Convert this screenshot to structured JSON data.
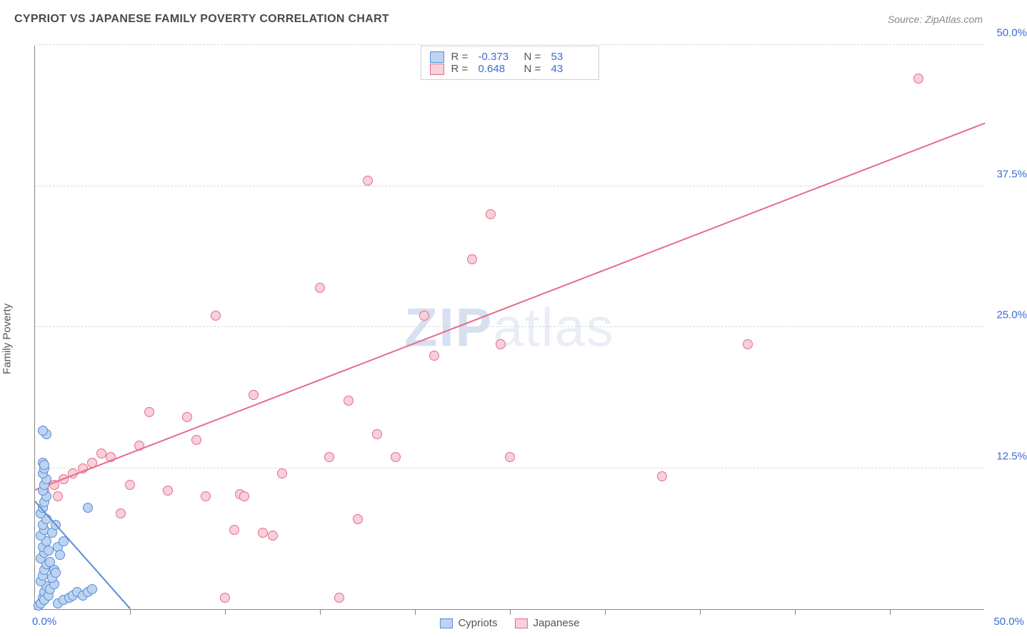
{
  "title": "CYPRIOT VS JAPANESE FAMILY POVERTY CORRELATION CHART",
  "source": "Source: ZipAtlas.com",
  "ylabel": "Family Poverty",
  "watermark": {
    "bold": "ZIP",
    "rest": "atlas"
  },
  "chart": {
    "type": "scatter",
    "xlim": [
      0,
      50
    ],
    "ylim": [
      0,
      50
    ],
    "grid_color": "#d8d8d8",
    "axis_color": "#888888",
    "background_color": "#ffffff",
    "tick_color": "#3b6bd6",
    "yticks": [
      12.5,
      25.0,
      37.5,
      50.0
    ],
    "ytick_labels": [
      "12.5%",
      "25.0%",
      "37.5%",
      "50.0%"
    ],
    "x_minor_ticks": [
      5,
      10,
      15,
      20,
      25,
      30,
      35,
      40,
      45
    ],
    "x_origin_label": "0.0%",
    "x_max_label": "50.0%",
    "marker_radius": 7,
    "marker_border_width": 1.5,
    "trend_line_width": 2,
    "label_fontsize": 15
  },
  "series": {
    "cypriots": {
      "label": "Cypriots",
      "fill": "#bcd4f0",
      "stroke": "#5a8bd8",
      "r_value": "-0.373",
      "n_value": "53",
      "trend": {
        "x1": 0,
        "y1": 9.5,
        "x2": 5,
        "y2": 0
      },
      "points": [
        [
          0.2,
          0.3
        ],
        [
          0.3,
          0.5
        ],
        [
          0.4,
          1.0
        ],
        [
          0.5,
          1.5
        ],
        [
          0.6,
          2.0
        ],
        [
          0.3,
          2.5
        ],
        [
          0.4,
          3.0
        ],
        [
          0.5,
          3.5
        ],
        [
          0.6,
          4.0
        ],
        [
          0.3,
          4.5
        ],
        [
          0.5,
          5.0
        ],
        [
          0.4,
          5.5
        ],
        [
          0.6,
          6.0
        ],
        [
          0.3,
          6.5
        ],
        [
          0.5,
          7.0
        ],
        [
          0.4,
          7.5
        ],
        [
          0.6,
          8.0
        ],
        [
          0.3,
          8.5
        ],
        [
          0.5,
          0.8
        ],
        [
          0.7,
          1.2
        ],
        [
          0.8,
          1.8
        ],
        [
          1.0,
          2.2
        ],
        [
          1.2,
          0.5
        ],
        [
          1.5,
          0.8
        ],
        [
          1.8,
          1.0
        ],
        [
          2.0,
          1.2
        ],
        [
          2.2,
          1.5
        ],
        [
          2.5,
          1.2
        ],
        [
          2.8,
          1.5
        ],
        [
          3.0,
          1.8
        ],
        [
          0.4,
          9.0
        ],
        [
          0.5,
          9.5
        ],
        [
          0.6,
          10.0
        ],
        [
          0.4,
          10.5
        ],
        [
          0.5,
          11.0
        ],
        [
          0.6,
          11.5
        ],
        [
          0.4,
          12.0
        ],
        [
          0.5,
          12.5
        ],
        [
          0.4,
          13.0
        ],
        [
          0.5,
          12.8
        ],
        [
          0.6,
          15.5
        ],
        [
          0.4,
          15.8
        ],
        [
          2.8,
          9.0
        ],
        [
          1.0,
          3.5
        ],
        [
          0.8,
          4.2
        ],
        [
          1.2,
          5.5
        ],
        [
          1.5,
          6.0
        ],
        [
          0.9,
          2.8
        ],
        [
          1.1,
          3.2
        ],
        [
          1.3,
          4.8
        ],
        [
          0.7,
          5.2
        ],
        [
          0.9,
          6.8
        ],
        [
          1.1,
          7.5
        ]
      ]
    },
    "japanese": {
      "label": "Japanese",
      "fill": "#f7d0d9",
      "stroke": "#e86a8a",
      "r_value": "0.648",
      "n_value": "43",
      "trend": {
        "x1": 0,
        "y1": 10.5,
        "x2": 50,
        "y2": 43
      },
      "points": [
        [
          0.5,
          10.5
        ],
        [
          1.0,
          11.0
        ],
        [
          1.2,
          10.0
        ],
        [
          1.5,
          11.5
        ],
        [
          2.0,
          12.0
        ],
        [
          2.5,
          12.5
        ],
        [
          3.0,
          13.0
        ],
        [
          3.5,
          13.8
        ],
        [
          4.0,
          13.5
        ],
        [
          4.5,
          8.5
        ],
        [
          5.0,
          11.0
        ],
        [
          5.5,
          14.5
        ],
        [
          6.0,
          17.5
        ],
        [
          7.0,
          10.5
        ],
        [
          8.0,
          17.0
        ],
        [
          8.5,
          15.0
        ],
        [
          9.0,
          10.0
        ],
        [
          9.5,
          26.0
        ],
        [
          10.0,
          1.0
        ],
        [
          10.5,
          7.0
        ],
        [
          10.8,
          10.2
        ],
        [
          11.0,
          10.0
        ],
        [
          11.5,
          19.0
        ],
        [
          12.5,
          6.5
        ],
        [
          15.0,
          28.5
        ],
        [
          15.5,
          13.5
        ],
        [
          16.0,
          1.0
        ],
        [
          16.5,
          18.5
        ],
        [
          17.0,
          8.0
        ],
        [
          17.5,
          38.0
        ],
        [
          18.0,
          15.5
        ],
        [
          19.0,
          13.5
        ],
        [
          20.5,
          26.0
        ],
        [
          21.0,
          22.5
        ],
        [
          23.0,
          31.0
        ],
        [
          24.0,
          35.0
        ],
        [
          24.5,
          23.5
        ],
        [
          25.0,
          13.5
        ],
        [
          33.0,
          11.8
        ],
        [
          37.5,
          23.5
        ],
        [
          46.5,
          47.0
        ],
        [
          12.0,
          6.8
        ],
        [
          13.0,
          12.0
        ]
      ]
    }
  },
  "legend_top": {
    "r_label": "R =",
    "n_label": "N ="
  },
  "legend_bottom_order": [
    "cypriots",
    "japanese"
  ]
}
